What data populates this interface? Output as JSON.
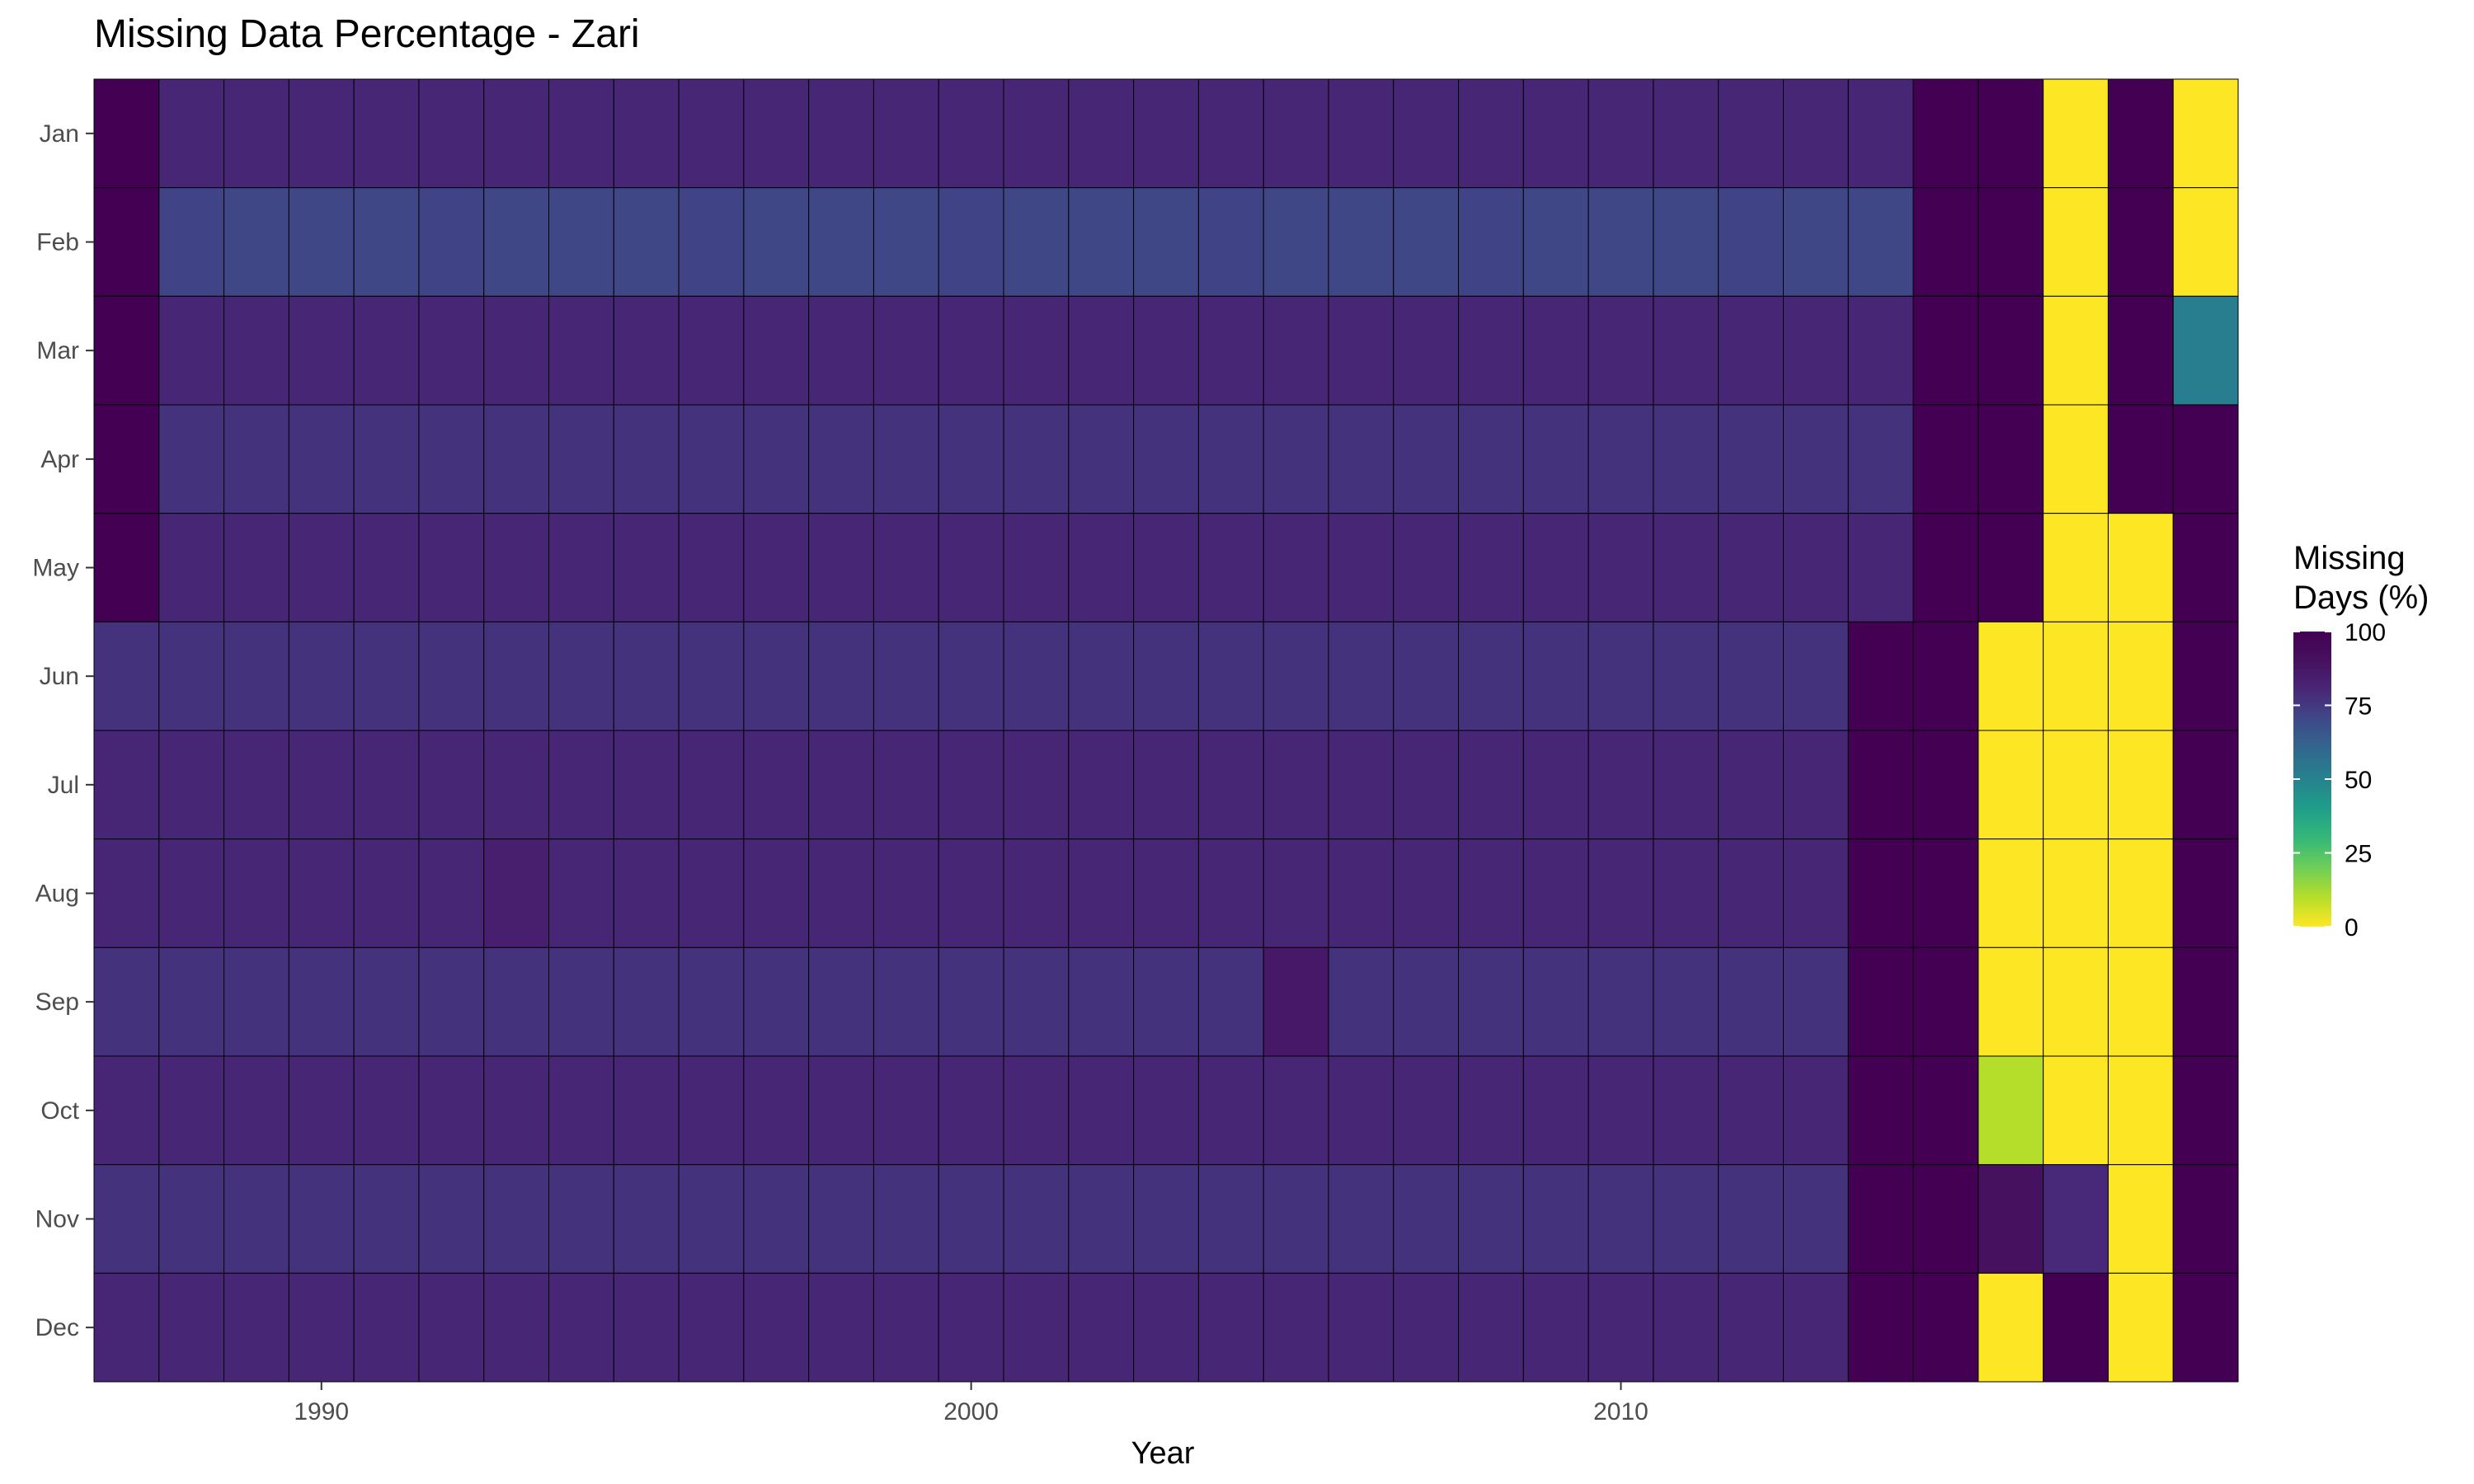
{
  "chart_data": {
    "type": "heatmap",
    "title": "Missing Data Percentage - Zari",
    "xlabel": "Year",
    "ylabel": "",
    "x": [
      1987,
      1988,
      1989,
      1990,
      1991,
      1992,
      1993,
      1994,
      1995,
      1996,
      1997,
      1998,
      1999,
      2000,
      2001,
      2002,
      2003,
      2004,
      2005,
      2006,
      2007,
      2008,
      2009,
      2010,
      2011,
      2012,
      2013,
      2014,
      2015,
      2016,
      2017,
      2018,
      2019
    ],
    "x_ticks": [
      "1990",
      "2000",
      "2010"
    ],
    "x_tick_values": [
      1990,
      2000,
      2010
    ],
    "y": [
      "Jan",
      "Feb",
      "Mar",
      "Apr",
      "May",
      "Jun",
      "Jul",
      "Aug",
      "Sep",
      "Oct",
      "Nov",
      "Dec"
    ],
    "values": [
      [
        100,
        81,
        81,
        81,
        81,
        81,
        81,
        81,
        81,
        81,
        81,
        81,
        81,
        81,
        81,
        81,
        81,
        81,
        81,
        81,
        81,
        81,
        81,
        81,
        81,
        81,
        81,
        81,
        100,
        100,
        0,
        100,
        0
      ],
      [
        100,
        72,
        71,
        71,
        71,
        72,
        71,
        71,
        71,
        72,
        71,
        71,
        71,
        72,
        71,
        71,
        71,
        72,
        71,
        71,
        71,
        72,
        71,
        71,
        71,
        72,
        71,
        71,
        100,
        100,
        0,
        100,
        0
      ],
      [
        100,
        81,
        81,
        81,
        81,
        81,
        81,
        81,
        81,
        81,
        81,
        81,
        81,
        81,
        81,
        81,
        81,
        81,
        81,
        81,
        81,
        81,
        81,
        81,
        81,
        81,
        81,
        81,
        100,
        100,
        0,
        100,
        52
      ],
      [
        100,
        77,
        77,
        77,
        77,
        77,
        77,
        77,
        77,
        77,
        77,
        77,
        77,
        77,
        77,
        77,
        77,
        77,
        77,
        77,
        77,
        77,
        77,
        77,
        77,
        77,
        77,
        77,
        100,
        100,
        0,
        100,
        100
      ],
      [
        100,
        81,
        81,
        81,
        81,
        81,
        81,
        81,
        81,
        81,
        81,
        81,
        81,
        81,
        81,
        81,
        81,
        81,
        81,
        81,
        81,
        81,
        81,
        81,
        81,
        81,
        81,
        81,
        100,
        100,
        0,
        0,
        100
      ],
      [
        77,
        77,
        77,
        77,
        77,
        77,
        77,
        77,
        77,
        77,
        77,
        77,
        77,
        77,
        77,
        77,
        77,
        77,
        77,
        77,
        77,
        77,
        77,
        77,
        77,
        77,
        77,
        100,
        100,
        0,
        0,
        0,
        100
      ],
      [
        81,
        81,
        81,
        81,
        81,
        81,
        81,
        81,
        81,
        81,
        81,
        81,
        81,
        81,
        81,
        81,
        81,
        81,
        81,
        81,
        81,
        81,
        81,
        81,
        81,
        81,
        81,
        100,
        100,
        0,
        0,
        0,
        100
      ],
      [
        81,
        81,
        81,
        81,
        81,
        81,
        84,
        81,
        81,
        81,
        81,
        81,
        81,
        81,
        81,
        81,
        81,
        81,
        81,
        81,
        81,
        81,
        81,
        81,
        81,
        81,
        81,
        100,
        100,
        0,
        0,
        0,
        100
      ],
      [
        77,
        77,
        77,
        77,
        77,
        77,
        77,
        77,
        77,
        77,
        77,
        77,
        77,
        77,
        77,
        77,
        77,
        77,
        87,
        77,
        77,
        77,
        77,
        77,
        77,
        77,
        77,
        100,
        100,
        0,
        0,
        0,
        100
      ],
      [
        81,
        81,
        81,
        81,
        81,
        81,
        81,
        81,
        81,
        81,
        81,
        81,
        81,
        81,
        81,
        81,
        81,
        81,
        81,
        81,
        81,
        81,
        81,
        81,
        81,
        81,
        81,
        100,
        100,
        10,
        0,
        0,
        100
      ],
      [
        77,
        77,
        77,
        77,
        77,
        77,
        77,
        77,
        77,
        77,
        77,
        77,
        77,
        77,
        77,
        77,
        77,
        77,
        77,
        77,
        77,
        77,
        77,
        77,
        77,
        77,
        77,
        100,
        100,
        90,
        80,
        0,
        100
      ],
      [
        81,
        81,
        81,
        81,
        81,
        81,
        81,
        81,
        81,
        81,
        81,
        81,
        81,
        81,
        81,
        81,
        81,
        81,
        81,
        81,
        81,
        81,
        81,
        81,
        81,
        81,
        81,
        100,
        100,
        0,
        100,
        0,
        100
      ]
    ],
    "legend": {
      "title_lines": [
        "Missing",
        "Days (%)"
      ],
      "ticks": [
        "100",
        "75",
        "50",
        "25",
        "0"
      ],
      "tick_values": [
        100,
        75,
        50,
        25,
        0
      ],
      "range": [
        0,
        100
      ],
      "colormap": "viridis-reversed",
      "placement": "right"
    },
    "grid": true
  }
}
